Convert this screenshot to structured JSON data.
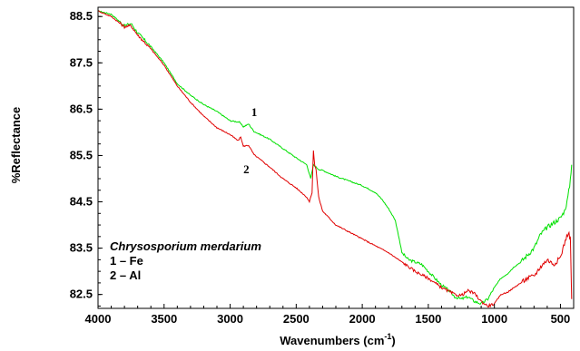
{
  "chart_data": {
    "type": "line",
    "xlabel": "Wavenumbers (cm",
    "xlabel_sup": "-1",
    "xlabel_end": ")",
    "ylabel": "%Reflectance",
    "xlim": [
      4000,
      400
    ],
    "ylim": [
      82.2,
      88.7
    ],
    "x_reversed": true,
    "x_ticks": [
      4000,
      3500,
      3000,
      2500,
      2000,
      1500,
      1000,
      500
    ],
    "y_ticks": [
      "88.5",
      "87.5",
      "86.5",
      "85.5",
      "84.5",
      "83.5",
      "82.5"
    ],
    "y_tick_values": [
      88.5,
      87.5,
      86.5,
      85.5,
      84.5,
      83.5,
      82.5
    ],
    "annotation": {
      "title": "Chrysosporium merdarium",
      "line1": "1 – Fe",
      "line2": "2 – Al"
    },
    "series": [
      {
        "name": "1",
        "color": "#00e000",
        "points": [
          [
            4000,
            88.62
          ],
          [
            3900,
            88.55
          ],
          [
            3800,
            88.3
          ],
          [
            3750,
            88.35
          ],
          [
            3700,
            88.15
          ],
          [
            3600,
            87.85
          ],
          [
            3500,
            87.5
          ],
          [
            3400,
            87.05
          ],
          [
            3300,
            86.8
          ],
          [
            3200,
            86.6
          ],
          [
            3100,
            86.45
          ],
          [
            3000,
            86.25
          ],
          [
            2930,
            86.22
          ],
          [
            2900,
            86.12
          ],
          [
            2860,
            86.18
          ],
          [
            2820,
            86.02
          ],
          [
            2700,
            85.85
          ],
          [
            2600,
            85.65
          ],
          [
            2500,
            85.45
          ],
          [
            2420,
            85.3
          ],
          [
            2390,
            85.0
          ],
          [
            2370,
            85.3
          ],
          [
            2350,
            85.25
          ],
          [
            2330,
            85.2
          ],
          [
            2300,
            85.18
          ],
          [
            2200,
            85.05
          ],
          [
            2100,
            84.95
          ],
          [
            2050,
            84.9
          ],
          [
            2000,
            84.85
          ],
          [
            1900,
            84.7
          ],
          [
            1850,
            84.55
          ],
          [
            1800,
            84.35
          ],
          [
            1750,
            84.1
          ],
          [
            1720,
            83.7
          ],
          [
            1700,
            83.4
          ],
          [
            1650,
            83.25
          ],
          [
            1600,
            83.2
          ],
          [
            1550,
            83.15
          ],
          [
            1500,
            83.0
          ],
          [
            1450,
            82.85
          ],
          [
            1400,
            82.7
          ],
          [
            1350,
            82.6
          ],
          [
            1300,
            82.45
          ],
          [
            1250,
            82.4
          ],
          [
            1200,
            82.45
          ],
          [
            1150,
            82.35
          ],
          [
            1100,
            82.3
          ],
          [
            1050,
            82.4
          ],
          [
            1000,
            82.65
          ],
          [
            950,
            82.85
          ],
          [
            900,
            82.95
          ],
          [
            850,
            83.1
          ],
          [
            800,
            83.2
          ],
          [
            750,
            83.35
          ],
          [
            700,
            83.5
          ],
          [
            650,
            83.8
          ],
          [
            600,
            83.95
          ],
          [
            550,
            84.05
          ],
          [
            500,
            84.15
          ],
          [
            470,
            84.3
          ],
          [
            450,
            84.5
          ],
          [
            430,
            84.85
          ],
          [
            415,
            85.3
          ]
        ]
      },
      {
        "name": "2",
        "color": "#e00000",
        "points": [
          [
            4000,
            88.62
          ],
          [
            3900,
            88.5
          ],
          [
            3800,
            88.28
          ],
          [
            3750,
            88.3
          ],
          [
            3700,
            88.1
          ],
          [
            3600,
            87.8
          ],
          [
            3500,
            87.45
          ],
          [
            3400,
            87.0
          ],
          [
            3300,
            86.65
          ],
          [
            3200,
            86.35
          ],
          [
            3100,
            86.1
          ],
          [
            3000,
            85.95
          ],
          [
            2940,
            85.82
          ],
          [
            2920,
            85.9
          ],
          [
            2900,
            85.7
          ],
          [
            2860,
            85.72
          ],
          [
            2820,
            85.52
          ],
          [
            2700,
            85.25
          ],
          [
            2600,
            85.0
          ],
          [
            2500,
            84.8
          ],
          [
            2420,
            84.6
          ],
          [
            2400,
            84.5
          ],
          [
            2380,
            84.7
          ],
          [
            2370,
            85.6
          ],
          [
            2360,
            85.3
          ],
          [
            2350,
            85.2
          ],
          [
            2330,
            84.6
          ],
          [
            2300,
            84.3
          ],
          [
            2200,
            84.0
          ],
          [
            2100,
            83.85
          ],
          [
            2000,
            83.7
          ],
          [
            1900,
            83.55
          ],
          [
            1800,
            83.4
          ],
          [
            1700,
            83.2
          ],
          [
            1600,
            83.0
          ],
          [
            1500,
            82.85
          ],
          [
            1400,
            82.65
          ],
          [
            1300,
            82.5
          ],
          [
            1250,
            82.48
          ],
          [
            1200,
            82.58
          ],
          [
            1150,
            82.52
          ],
          [
            1100,
            82.35
          ],
          [
            1050,
            82.25
          ],
          [
            1000,
            82.3
          ],
          [
            950,
            82.5
          ],
          [
            900,
            82.55
          ],
          [
            850,
            82.65
          ],
          [
            800,
            82.75
          ],
          [
            750,
            82.85
          ],
          [
            700,
            82.9
          ],
          [
            650,
            83.1
          ],
          [
            600,
            83.25
          ],
          [
            550,
            83.15
          ],
          [
            500,
            83.3
          ],
          [
            470,
            83.6
          ],
          [
            440,
            83.85
          ],
          [
            425,
            83.7
          ],
          [
            415,
            82.4
          ]
        ]
      }
    ]
  }
}
